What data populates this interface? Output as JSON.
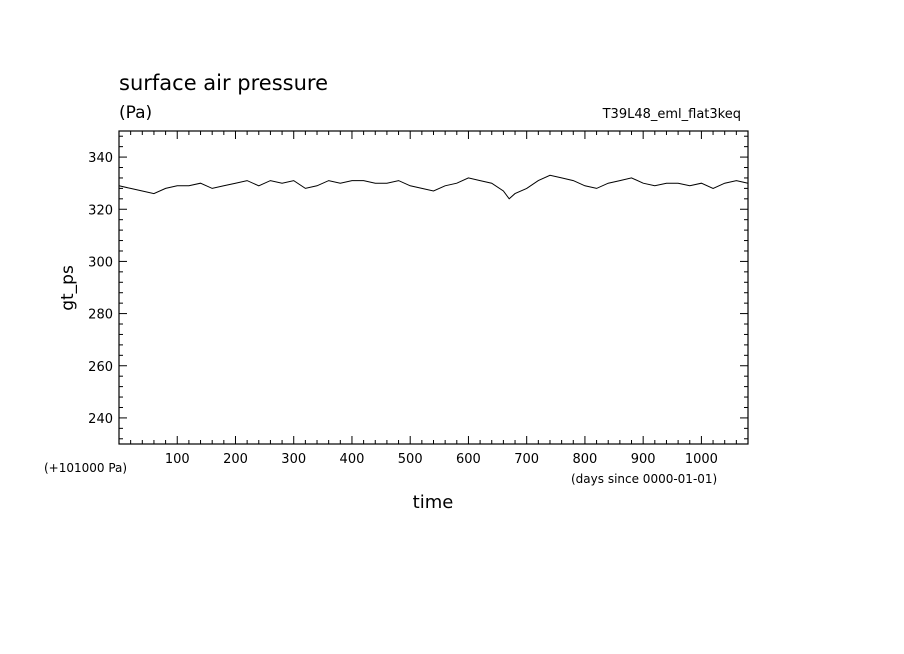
{
  "chart_data": {
    "type": "line",
    "title": "surface air pressure",
    "units_label": "(Pa)",
    "run_label": "T39L48_eml_flat3keq",
    "ylabel": "gt_ps",
    "xlabel": "time",
    "y_offset_label": "(+101000 Pa)",
    "x_units_label": "(days since 0000-01-01)",
    "xlim": [
      0,
      1080
    ],
    "ylim": [
      230,
      350
    ],
    "x_ticks": [
      100,
      200,
      300,
      400,
      500,
      600,
      700,
      800,
      900,
      1000
    ],
    "y_ticks": [
      240,
      260,
      280,
      300,
      320,
      340
    ],
    "grid": false,
    "series": [
      {
        "x": [
          0,
          20,
          40,
          60,
          80,
          100,
          120,
          140,
          160,
          180,
          200,
          220,
          240,
          260,
          280,
          300,
          320,
          340,
          360,
          380,
          400,
          420,
          440,
          460,
          480,
          500,
          520,
          540,
          560,
          580,
          600,
          620,
          640,
          660,
          670,
          680,
          700,
          720,
          740,
          760,
          780,
          800,
          820,
          840,
          860,
          880,
          900,
          920,
          940,
          960,
          980,
          1000,
          1020,
          1040,
          1060,
          1080
        ],
        "values": [
          329,
          328,
          327,
          326,
          328,
          329,
          329,
          330,
          328,
          329,
          330,
          331,
          329,
          331,
          330,
          331,
          328,
          329,
          331,
          330,
          331,
          331,
          330,
          330,
          331,
          329,
          328,
          327,
          329,
          330,
          332,
          331,
          330,
          327,
          324,
          326,
          328,
          331,
          333,
          332,
          331,
          329,
          328,
          330,
          331,
          332,
          330,
          329,
          330,
          330,
          329,
          330,
          328,
          330,
          331,
          330
        ]
      }
    ]
  }
}
